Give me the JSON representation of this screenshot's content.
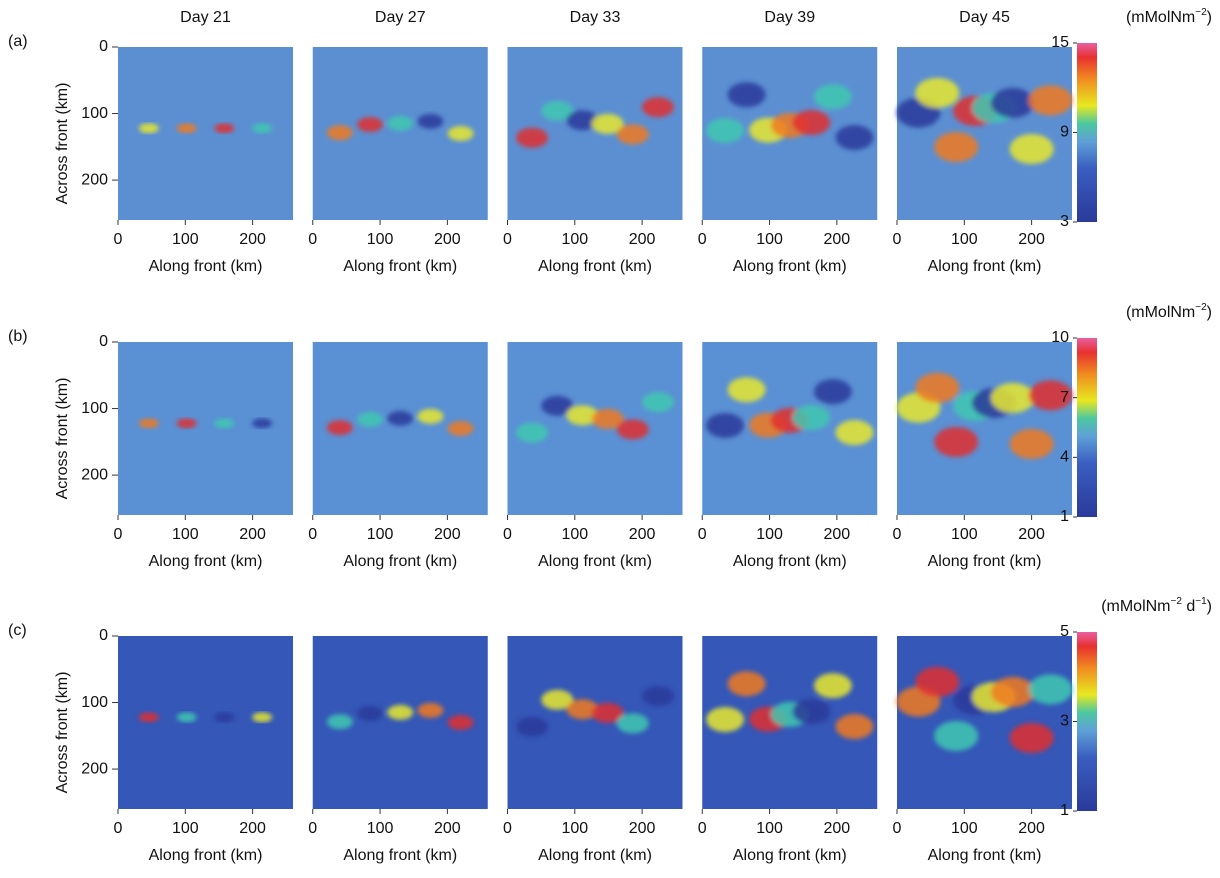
{
  "columns": [
    "Day 21",
    "Day 27",
    "Day 33",
    "Day 39",
    "Day 45"
  ],
  "x_axis": {
    "label": "Along front (km)",
    "lim": [
      0,
      260
    ],
    "ticks": [
      0,
      100,
      200
    ]
  },
  "y_axis": {
    "label": "Across front (km)",
    "lim": [
      0,
      260
    ],
    "ticks": [
      0,
      100,
      200
    ]
  },
  "rows": [
    {
      "label": "(a)",
      "unit": [
        "(mMolNm",
        "−2",
        ")"
      ],
      "colorbar": {
        "lim": [
          3,
          15
        ],
        "ticks": [
          3,
          9,
          15
        ]
      }
    },
    {
      "label": "(b)",
      "unit": [
        "(mMolNm",
        "−2",
        ")"
      ],
      "colorbar": {
        "lim": [
          1,
          10
        ],
        "ticks": [
          1,
          4,
          7,
          10
        ]
      }
    },
    {
      "label": "(c)",
      "unit": [
        "(mMolNm",
        "−2",
        " d",
        "−1",
        ")"
      ],
      "colorbar": {
        "lim": [
          1,
          5
        ],
        "ticks": [
          1,
          3,
          5
        ]
      }
    }
  ]
}
